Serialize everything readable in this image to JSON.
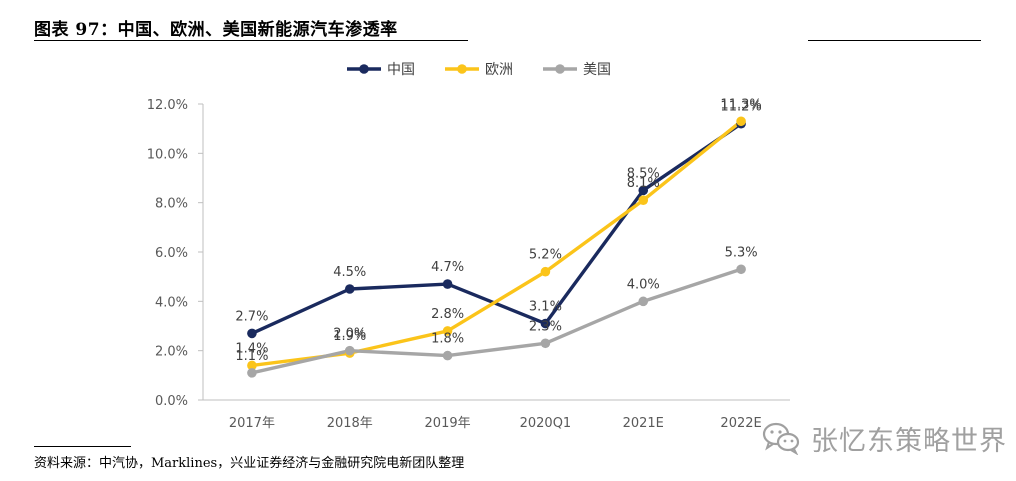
{
  "figure": {
    "title": "图表 97：中国、欧洲、美国新能源汽车渗透率",
    "source": "资料来源：中汽协，Marklines，兴业证券经济与金融研究院电新团队整理",
    "watermark": "张忆东策略世界",
    "watermark_icon": "wechat-icon"
  },
  "chart_data": {
    "type": "line",
    "title": "",
    "xlabel": "",
    "ylabel": "",
    "categories": [
      "2017年",
      "2018年",
      "2019年",
      "2020Q1",
      "2021E",
      "2022E"
    ],
    "ylim": [
      0,
      12
    ],
    "yticks": [
      "0.0%",
      "2.0%",
      "4.0%",
      "6.0%",
      "8.0%",
      "10.0%",
      "12.0%"
    ],
    "legend_position": "top-center",
    "series": [
      {
        "name": "中国",
        "color": "#1a2a5e",
        "values": [
          2.7,
          4.5,
          4.7,
          3.1,
          8.5,
          11.2
        ],
        "labels": [
          "2.7%",
          "4.5%",
          "4.7%",
          "3.1%",
          "8.5%",
          "11.2%"
        ]
      },
      {
        "name": "欧洲",
        "color": "#fbc41a",
        "values": [
          1.4,
          1.9,
          2.8,
          5.2,
          8.1,
          11.3
        ],
        "labels": [
          "1.4%",
          "1.9%",
          "2.8%",
          "5.2%",
          "8.1%",
          "11.3%"
        ]
      },
      {
        "name": "美国",
        "color": "#a6a6a6",
        "values": [
          1.1,
          2.0,
          1.8,
          2.3,
          4.0,
          5.3
        ],
        "labels": [
          "1.1%",
          "2.0%",
          "1.8%",
          "2.3%",
          "4.0%",
          "5.3%"
        ]
      }
    ]
  }
}
